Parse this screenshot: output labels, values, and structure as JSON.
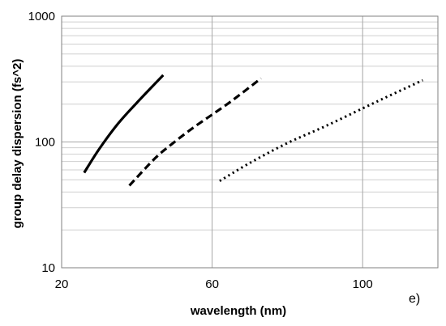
{
  "chart_data": {
    "type": "line",
    "xlabel": "wavelength (nm)",
    "ylabel": "group delay dispersion (fs^2)",
    "panel_label": "e)",
    "xlim": [
      20,
      120
    ],
    "ylim": [
      10,
      1000
    ],
    "yscale": "log",
    "x_ticks": [
      20,
      60,
      100
    ],
    "x_tick_labels": [
      "20",
      "60",
      "100"
    ],
    "y_ticks": [
      10,
      100,
      1000
    ],
    "y_tick_labels": [
      "10",
      "100",
      "1000"
    ],
    "grid": true,
    "series": [
      {
        "style": "solid",
        "color": "#000000",
        "x": [
          26,
          30,
          35,
          40,
          47
        ],
        "y": [
          57,
          88,
          140,
          205,
          340
        ]
      },
      {
        "style": "dashed",
        "color": "#000000",
        "x": [
          38,
          45,
          50,
          55,
          60,
          65,
          73
        ],
        "y": [
          45,
          75,
          100,
          130,
          165,
          210,
          320
        ]
      },
      {
        "style": "dotted",
        "color": "#000000",
        "x": [
          62,
          70,
          80,
          90,
          100,
          108,
          116
        ],
        "y": [
          49,
          68,
          98,
          133,
          185,
          240,
          310
        ]
      }
    ]
  }
}
